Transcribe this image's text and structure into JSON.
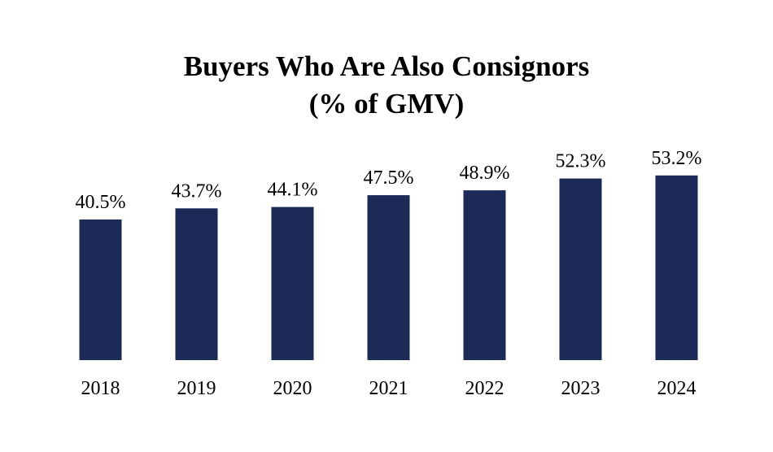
{
  "chart_data": {
    "type": "bar",
    "title_lines": [
      "Buyers Who Are Also Consignors",
      "(% of GMV)"
    ],
    "categories": [
      "2018",
      "2019",
      "2020",
      "2021",
      "2022",
      "2023",
      "2024"
    ],
    "values": [
      40.5,
      43.7,
      44.1,
      47.5,
      48.9,
      52.3,
      53.2
    ],
    "value_labels": [
      "40.5%",
      "43.7%",
      "44.1%",
      "47.5%",
      "48.9%",
      "52.3%",
      "53.2%"
    ],
    "xlabel": "",
    "ylabel": "",
    "ylim": [
      0,
      55
    ],
    "grid": false,
    "legend": "none",
    "bar_color": "#1b2a57"
  }
}
